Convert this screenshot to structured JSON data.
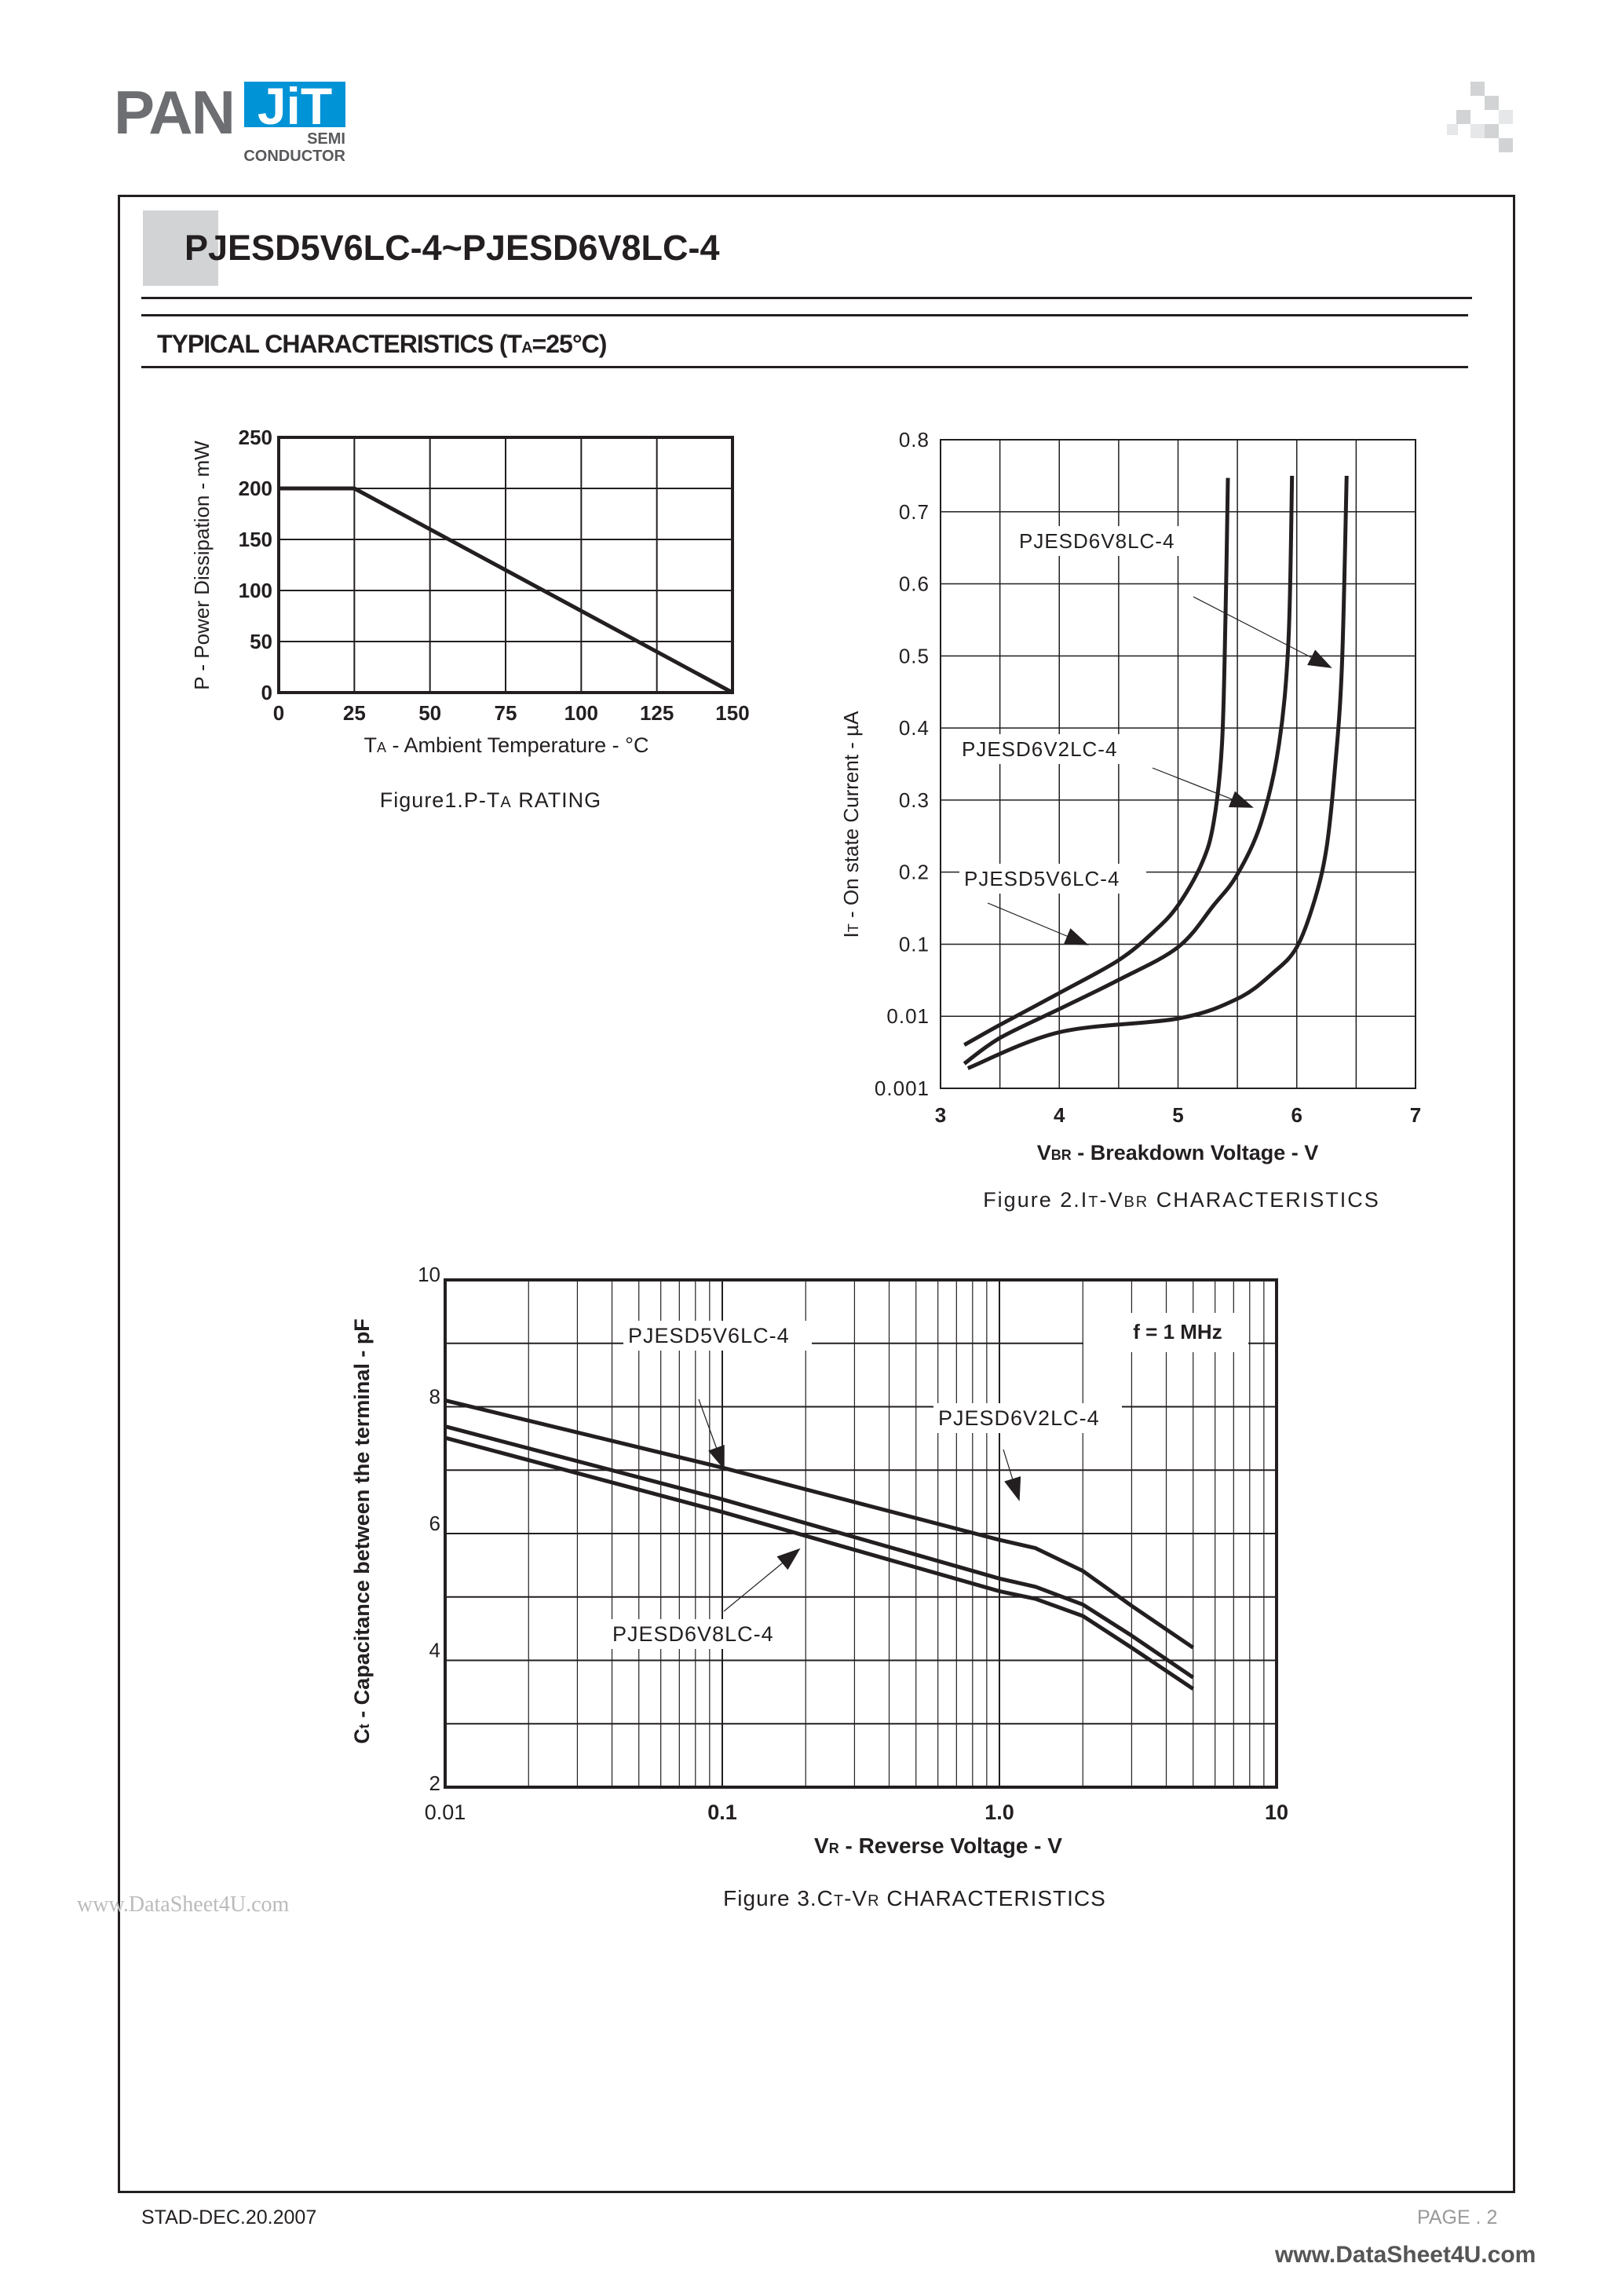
{
  "header": {
    "logo": {
      "pan": "PAN",
      "jit": "JiT",
      "line1": "SEMI",
      "line2": "CONDUCTOR",
      "brand_color": "#0093d6"
    },
    "decor_icon": "checker-squares-icon",
    "title": "PJESD5V6LC-4~PJESD6V8LC-4",
    "section": {
      "main": "TYPICAL CHARACTERISTICS (T",
      "sub": "A",
      "end": "=25°C)"
    }
  },
  "chart_data": [
    {
      "type": "line",
      "caption": {
        "a": "Figure1.P-T",
        "sub": "A",
        "b": " RATING"
      },
      "xlabel": {
        "a": "T",
        "sub": "A",
        "b": " - Ambient Temperature - °C"
      },
      "ylabel": "P - Power Dissipation - mW",
      "xlim": [
        0,
        150
      ],
      "ylim": [
        0,
        250
      ],
      "xticks": [
        "0",
        "25",
        "50",
        "75",
        "100",
        "125",
        "150"
      ],
      "yticks": [
        "0",
        "50",
        "100",
        "150",
        "200",
        "250"
      ],
      "grid": true,
      "series": [
        {
          "x": [
            0,
            25,
            150
          ],
          "y": [
            200,
            200,
            0
          ]
        }
      ]
    },
    {
      "type": "line",
      "caption": {
        "a": "Figure 2.I",
        "sub": "T",
        "b": "-V",
        "sub2": "BR",
        "c": " CHARACTERISTICS"
      },
      "xlabel": {
        "a": "V",
        "sub": "BR",
        "b": " - Breakdown Voltage - V"
      },
      "ylabel": {
        "a": "I",
        "sub": "T",
        "b": " - On state Current - µA"
      },
      "xlim": [
        3,
        7
      ],
      "xticks": [
        "3",
        "4",
        "5",
        "6",
        "7"
      ],
      "yticks": [
        "0.001",
        "0.01",
        "0.1",
        "0.2",
        "0.3",
        "0.4",
        "0.5",
        "0.6",
        "0.7",
        "0.8"
      ],
      "grid": true,
      "series": [
        {
          "name": "PJESD5V6LC-4",
          "x": [
            3.2,
            3.5,
            4,
            4.5,
            4.8,
            5.0,
            5.2,
            5.3,
            5.37,
            5.4,
            5.42
          ],
          "y": [
            0.004,
            0.0076,
            0.021,
            0.06,
            0.118,
            0.154,
            0.212,
            0.269,
            0.377,
            0.557,
            0.747
          ]
        },
        {
          "name": "PJESD6V2LC-4",
          "x": [
            3.2,
            3.5,
            4,
            4.5,
            5,
            5.3,
            5.5,
            5.7,
            5.85,
            5.93,
            5.96
          ],
          "y": [
            0.0022,
            0.005,
            0.0126,
            0.032,
            0.091,
            0.154,
            0.197,
            0.269,
            0.377,
            0.521,
            0.75
          ]
        },
        {
          "name": "PJESD6V8LC-4",
          "x": [
            3.23,
            4,
            5,
            5.5,
            5.8,
            6,
            6.15,
            6.25,
            6.32,
            6.38,
            6.42
          ],
          "y": [
            0.0019,
            0.006,
            0.0093,
            0.0175,
            0.04,
            0.091,
            0.161,
            0.233,
            0.341,
            0.485,
            0.75
          ]
        }
      ]
    },
    {
      "type": "line",
      "caption": {
        "a": "Figure 3.C",
        "sub": "T",
        "b": "-V",
        "sub2": "R",
        "c": " CHARACTERISTICS"
      },
      "xlabel": {
        "a": "V",
        "sub": "R",
        "b": " - Reverse Voltage - V"
      },
      "ylabel": {
        "a": "C",
        "sub": "t",
        "b": " - Capacitance between the terminal - pF"
      },
      "xscale": "log",
      "xlim": [
        0.01,
        10
      ],
      "ylim": [
        2,
        10
      ],
      "xticks": [
        "0.01",
        "0.1",
        "1.0",
        "10"
      ],
      "yticks": [
        "2",
        "4",
        "6",
        "8",
        "10"
      ],
      "annotation": "f = 1 MHz",
      "grid": true,
      "series": [
        {
          "name": "PJESD5V6LC-4",
          "x": [
            0.01,
            0.1,
            1.0,
            1.35,
            2,
            3,
            5
          ],
          "y": [
            8.1,
            7.04,
            5.9,
            5.77,
            5.41,
            4.86,
            4.2
          ]
        },
        {
          "name": "PJESD6V2LC-4",
          "x": [
            0.01,
            0.1,
            1.0,
            1.35,
            2,
            3,
            5
          ],
          "y": [
            7.69,
            6.54,
            5.29,
            5.16,
            4.88,
            4.39,
            3.73
          ]
        },
        {
          "name": "PJESD6V8LC-4",
          "x": [
            0.01,
            0.1,
            1.0,
            1.35,
            2,
            3,
            5
          ],
          "y": [
            7.51,
            6.34,
            5.09,
            4.97,
            4.7,
            4.2,
            3.55
          ]
        }
      ]
    }
  ],
  "footer": {
    "date": "STAD-DEC.20.2007",
    "page": "PAGE . 2",
    "watermark": "www.DataSheet4U.com"
  }
}
